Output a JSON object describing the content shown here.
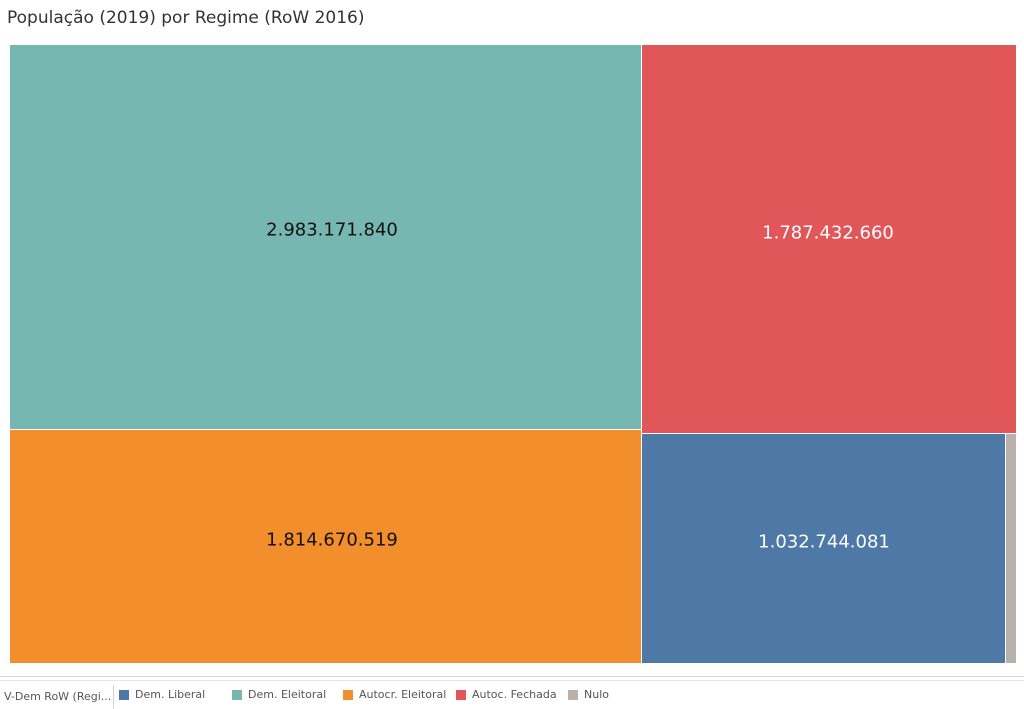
{
  "chart_data": {
    "type": "treemap",
    "title": "População (2019) por Regime (RoW 2016)",
    "legend_title": "V-Dem RoW (Regi...",
    "legend_position": "bottom",
    "categories": [
      "Dem. Liberal",
      "Dem. Eleitoral",
      "Autocr. Eleitoral",
      "Autoc. Fechada",
      "Nulo"
    ],
    "colors": [
      "#4e79a7",
      "#76b7b2",
      "#f28e2b",
      "#e15759",
      "#bab0ac"
    ],
    "values": [
      1032744081,
      2983171840,
      1814670519,
      1787432660,
      null
    ],
    "value_labels": [
      "1.032.744.081",
      "2.983.171.840",
      "1.814.670.519",
      "1.787.432.660",
      ""
    ]
  }
}
